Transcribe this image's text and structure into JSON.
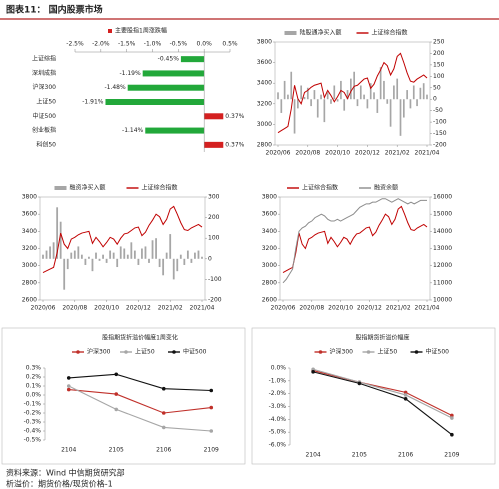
{
  "header": {
    "title": "图表11：  国内股票市场"
  },
  "chart_data": [
    {
      "type": "bar",
      "orientation": "horizontal",
      "title": "主要股指1周涨跌幅",
      "title_color": "#d42020",
      "categories": [
        "上证综指",
        "深圳成指",
        "沪深300",
        "上证50",
        "中证500",
        "创业板指",
        "科创50"
      ],
      "values": [
        -0.45,
        -1.19,
        -1.48,
        -1.91,
        0.37,
        -1.14,
        0.37
      ],
      "value_labels": [
        "-0.45%",
        "-1.19%",
        "-1.48%",
        "-1.91%",
        "0.37%",
        "-1.14%",
        "0.37%"
      ],
      "colors": [
        "#22a83a",
        "#22a83a",
        "#22a83a",
        "#22a83a",
        "#d42020",
        "#22a83a",
        "#d42020"
      ],
      "xlim": [
        -2.5,
        0.5
      ],
      "xticks": [
        {
          "value": -2.5,
          "label": "-2.5%"
        },
        {
          "value": -2,
          "label": "-2.0%"
        },
        {
          "value": -1.5,
          "label": "-1.5%"
        },
        {
          "value": -1,
          "label": "-1.0%"
        },
        {
          "value": -0.5,
          "label": "-0.5%"
        },
        {
          "value": 0,
          "label": "0.0%"
        },
        {
          "value": 0.5,
          "label": "0.5%"
        }
      ]
    },
    {
      "type": "combo",
      "categories": [
        "2020/06",
        null,
        null,
        null,
        null,
        null,
        null,
        null,
        null,
        "2020/08",
        null,
        null,
        null,
        null,
        null,
        null,
        null,
        null,
        "2020/10",
        null,
        null,
        null,
        null,
        null,
        null,
        null,
        null,
        "2020/12",
        null,
        null,
        null,
        null,
        null,
        null,
        null,
        null,
        "2021/02",
        null,
        null,
        null,
        null,
        null,
        null,
        null,
        null,
        "2021/04"
      ],
      "series": [
        {
          "name": "陆股通净买入额",
          "kind": "bar",
          "axis": "y2",
          "color": "#a6a6a6",
          "values": [
            30,
            -60,
            80,
            20,
            120,
            -150,
            -40,
            60,
            10,
            50,
            -30,
            40,
            -80,
            20,
            -100,
            30,
            -20,
            60,
            -10,
            80,
            -50,
            40,
            90,
            120,
            -30,
            60,
            20,
            -40,
            70,
            30,
            -60,
            140,
            80,
            -20,
            -120,
            60,
            90,
            -160,
            -80,
            40,
            -40,
            60,
            -30,
            50,
            70,
            20
          ]
        },
        {
          "name": "上证综合指数",
          "kind": "line",
          "color": "#c00000",
          "values": [
            2920,
            2940,
            2960,
            2980,
            3150,
            3380,
            3250,
            3200,
            3310,
            3330,
            3360,
            3380,
            3390,
            3400,
            3260,
            3330,
            3280,
            3220,
            3270,
            3330,
            3310,
            3250,
            3320,
            3370,
            3380,
            3410,
            3440,
            3450,
            3350,
            3390,
            3470,
            3530,
            3600,
            3570,
            3480,
            3540,
            3660,
            3690,
            3600,
            3500,
            3420,
            3410,
            3440,
            3460,
            3480,
            3450
          ]
        }
      ],
      "ylim": [
        2800,
        3800
      ],
      "yticks": [
        2800,
        3000,
        3200,
        3400,
        3600,
        3800
      ],
      "y2lim": [
        -200,
        250
      ],
      "y2ticks": [
        -200,
        -150,
        -100,
        -50,
        0,
        50,
        100,
        150,
        200,
        250
      ]
    },
    {
      "type": "combo",
      "categories": [
        "2020/06",
        null,
        null,
        null,
        null,
        null,
        null,
        null,
        null,
        "2020/08",
        null,
        null,
        null,
        null,
        null,
        null,
        null,
        null,
        "2020/10",
        null,
        null,
        null,
        null,
        null,
        null,
        null,
        null,
        "2020/12",
        null,
        null,
        null,
        null,
        null,
        null,
        null,
        null,
        "2021/02",
        null,
        null,
        null,
        null,
        null,
        null,
        null,
        null,
        "2021/04"
      ],
      "series": [
        {
          "name": "融资净买入额",
          "kind": "bar",
          "axis": "y2",
          "color": "#a6a6a6",
          "values": [
            20,
            40,
            60,
            80,
            250,
            180,
            -150,
            -50,
            30,
            40,
            60,
            20,
            -30,
            10,
            -60,
            30,
            -10,
            20,
            -20,
            40,
            30,
            -40,
            60,
            50,
            20,
            80,
            40,
            -30,
            50,
            60,
            -20,
            90,
            100,
            -40,
            -80,
            30,
            120,
            -100,
            -60,
            20,
            -30,
            40,
            -20,
            30,
            40,
            10
          ]
        },
        {
          "name": "上证综合指数",
          "kind": "line",
          "color": "#c00000",
          "values": [
            2920,
            2940,
            2960,
            2980,
            3150,
            3380,
            3250,
            3200,
            3310,
            3330,
            3360,
            3380,
            3390,
            3400,
            3260,
            3330,
            3280,
            3220,
            3270,
            3330,
            3310,
            3250,
            3320,
            3370,
            3380,
            3410,
            3440,
            3450,
            3350,
            3390,
            3470,
            3530,
            3600,
            3570,
            3480,
            3540,
            3660,
            3690,
            3600,
            3500,
            3420,
            3410,
            3440,
            3460,
            3480,
            3450
          ]
        }
      ],
      "ylim": [
        2600,
        3800
      ],
      "yticks": [
        2600,
        2800,
        3000,
        3200,
        3400,
        3600,
        3800
      ],
      "y2lim": [
        -200,
        300
      ],
      "y2ticks": [
        -200,
        -100,
        0,
        100,
        200,
        300
      ]
    },
    {
      "type": "combo",
      "categories": [
        "2020/06",
        null,
        null,
        null,
        null,
        null,
        null,
        null,
        null,
        "2020/08",
        null,
        null,
        null,
        null,
        null,
        null,
        null,
        null,
        "2020/10",
        null,
        null,
        null,
        null,
        null,
        null,
        null,
        null,
        "2020/12",
        null,
        null,
        null,
        null,
        null,
        null,
        null,
        null,
        "2021/02",
        null,
        null,
        null,
        null,
        null,
        null,
        null,
        null,
        "2021/04"
      ],
      "series": [
        {
          "name": "上证综合指数",
          "kind": "line",
          "color": "#c00000",
          "values": [
            2920,
            2940,
            2960,
            2980,
            3150,
            3380,
            3250,
            3200,
            3310,
            3330,
            3360,
            3380,
            3390,
            3400,
            3260,
            3330,
            3280,
            3220,
            3270,
            3330,
            3310,
            3250,
            3320,
            3370,
            3380,
            3410,
            3440,
            3450,
            3350,
            3390,
            3470,
            3530,
            3600,
            3570,
            3480,
            3540,
            3660,
            3690,
            3600,
            3500,
            3420,
            3410,
            3440,
            3460,
            3480,
            3450
          ]
        },
        {
          "name": "融资余额",
          "kind": "line",
          "axis": "y2",
          "color": "#8c8c8c",
          "values": [
            11000,
            11200,
            11500,
            11800,
            13000,
            14000,
            14200,
            14300,
            14500,
            14600,
            14800,
            14900,
            15000,
            14900,
            14700,
            14600,
            14600,
            14700,
            14600,
            14700,
            14800,
            14900,
            15000,
            15200,
            15400,
            15500,
            15600,
            15600,
            15700,
            15700,
            15800,
            15900,
            15900,
            15800,
            15700,
            15800,
            15900,
            15800,
            15700,
            15600,
            15700,
            15600,
            15700,
            15800,
            15800,
            15800
          ]
        }
      ],
      "ylim": [
        2600,
        3800
      ],
      "yticks": [
        2600,
        2800,
        3000,
        3200,
        3400,
        3600,
        3800
      ],
      "y2lim": [
        10000,
        16000
      ],
      "y2ticks": [
        10000,
        11000,
        12000,
        13000,
        14000,
        15000,
        16000
      ]
    },
    {
      "type": "line",
      "markers": true,
      "title": "股指期货折溢价幅度1周变化",
      "categories": [
        "2104",
        "2105",
        "2106",
        "2109"
      ],
      "series": [
        {
          "name": "沪深300",
          "color": "#c0302a",
          "values": [
            0.06,
            0.01,
            -0.2,
            -0.14
          ]
        },
        {
          "name": "上证50",
          "color": "#a6a6a6",
          "values": [
            0.1,
            -0.16,
            -0.36,
            -0.4
          ]
        },
        {
          "name": "中证500",
          "color": "#111111",
          "values": [
            0.19,
            0.23,
            0.07,
            0.05
          ]
        }
      ],
      "ylim": [
        -0.5,
        0.3
      ],
      "yticks": [
        {
          "value": -0.5,
          "label": "-0.5%"
        },
        {
          "value": -0.4,
          "label": "-0.4%"
        },
        {
          "value": -0.3,
          "label": "-0.3%"
        },
        {
          "value": -0.2,
          "label": "-0.2%"
        },
        {
          "value": -0.1,
          "label": "-0.1%"
        },
        {
          "value": 0,
          "label": "0.0%"
        },
        {
          "value": 0.1,
          "label": "0.1%"
        },
        {
          "value": 0.2,
          "label": "0.2%"
        },
        {
          "value": 0.3,
          "label": "0.3%"
        }
      ]
    },
    {
      "type": "line",
      "markers": true,
      "title": "股指期货折溢价幅度",
      "categories": [
        "2104",
        "2105",
        "2106",
        "2109"
      ],
      "series": [
        {
          "name": "沪深300",
          "color": "#c0302a",
          "values": [
            -0.2,
            -1.1,
            -1.9,
            -3.7
          ]
        },
        {
          "name": "上证50",
          "color": "#a6a6a6",
          "values": [
            -0.1,
            -1.1,
            -2.1,
            -3.9
          ]
        },
        {
          "name": "中证500",
          "color": "#111111",
          "values": [
            -0.3,
            -1.2,
            -2.4,
            -5.2
          ]
        }
      ],
      "ylim": [
        -6,
        0
      ],
      "yticks": [
        {
          "value": -6,
          "label": "-6.0%"
        },
        {
          "value": -5,
          "label": "-5.0%"
        },
        {
          "value": -4,
          "label": "-4.0%"
        },
        {
          "value": -3,
          "label": "-3.0%"
        },
        {
          "value": -2,
          "label": "-2.0%"
        },
        {
          "value": -1,
          "label": "-1.0%"
        },
        {
          "value": 0,
          "label": "0.0%"
        }
      ]
    }
  ],
  "footer": {
    "source": "资料来源：Wind  中信期货研究部",
    "note": "析溢价：期货价格/现货价格-1"
  }
}
